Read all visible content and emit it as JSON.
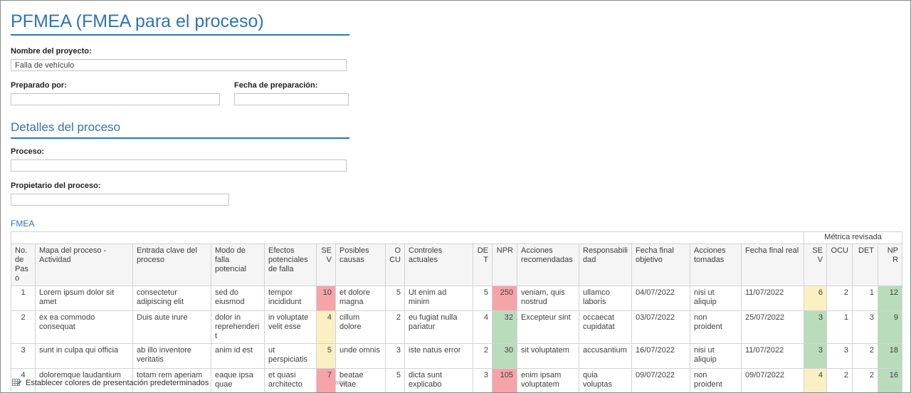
{
  "page": {
    "title": "PFMEA (FMEA para el proceso)"
  },
  "colors": {
    "accent": "#2e75b6",
    "risk_high": "#f5a4a8",
    "risk_medium": "#fbf0c3",
    "risk_low": "#b9dcba"
  },
  "form": {
    "project_name": {
      "label": "Nombre del proyecto:",
      "value": "Falla de vehículo"
    },
    "prepared_by": {
      "label": "Preparado por:",
      "value": ""
    },
    "prep_date": {
      "label": "Fecha de preparación:",
      "value": ""
    },
    "section_process": "Detalles del proceso",
    "process": {
      "label": "Proceso:",
      "value": ""
    },
    "process_owner": {
      "label": "Propietario del proceso:",
      "value": ""
    }
  },
  "fmea": {
    "section_label": "FMEA",
    "group_header": "Métrica revisada",
    "columns": [
      "No. de Paso",
      "Mapa del proceso - Actividad",
      "Entrada clave del proceso",
      "Modo de falla potencial",
      "Efectos potenciales de falla",
      "SEV",
      "Posibles causas",
      "OCU",
      "Controles actuales",
      "DET",
      "NPR",
      "Acciones recomendadas",
      "Responsabilidad",
      "Fecha final objetivo",
      "Acciones tomadas",
      "Fecha final real",
      "SEV",
      "OCU",
      "DET",
      "NPR"
    ],
    "rows": [
      {
        "cells": [
          "1",
          "Lorem ipsum dolor sit amet",
          "consectetur adipiscing elit",
          "sed do eiusmod",
          "tempor incididunt",
          "10",
          "et dolore magna",
          "5",
          "Ut enim ad minim",
          "5",
          "250",
          "veniam, quis nostrud",
          "ullamco laboris",
          "04/07/2022",
          "nisi ut aliquip",
          "11/07/2022",
          "6",
          "2",
          "1",
          "12"
        ],
        "highlights": {
          "5": "red",
          "10": "red",
          "16": "yellow",
          "19": "green"
        }
      },
      {
        "cells": [
          "2",
          "ex ea commodo consequat",
          "Duis aute irure",
          "dolor in reprehenderit",
          "in voluptate velit esse",
          "4",
          "cillum dolore",
          "2",
          "eu fugiat nulla pariatur",
          "4",
          "32",
          "Excepteur sint",
          "occaecat cupidatat",
          "03/07/2022",
          "non proident",
          "25/07/2022",
          "3",
          "1",
          "3",
          "9"
        ],
        "highlights": {
          "5": "yellow",
          "10": "green",
          "16": "green",
          "19": "green"
        }
      },
      {
        "cells": [
          "3",
          "sunt in culpa qui officia",
          "ab illo inventore veritatis",
          "anim id est",
          "ut perspiciatis",
          "5",
          "unde omnis",
          "3",
          "iste natus error",
          "2",
          "30",
          "sit voluptatem",
          "accusantium",
          "16/07/2022",
          "nisi ut aliquip",
          "11/07/2022",
          "3",
          "3",
          "2",
          "18"
        ],
        "highlights": {
          "5": "yellow",
          "10": "green",
          "16": "green",
          "19": "green"
        }
      },
      {
        "cells": [
          "4",
          "doloremque laudantium",
          "totam rem aperiam",
          "eaque ipsa quae",
          "et quasi architecto",
          "7",
          "beatae vitae",
          "5",
          "dicta sunt explicabo",
          "3",
          "105",
          "enim ipsam voluptatem",
          "quia voluptas",
          "09/07/2022",
          "non proident",
          "09/07/2022",
          "4",
          "2",
          "2",
          "16"
        ],
        "highlights": {
          "5": "red",
          "10": "red",
          "16": "yellow",
          "19": "green"
        }
      }
    ]
  },
  "footer": {
    "set_colors_label": "Establecer colores de presentación predeterminados",
    "open_label": "abrir"
  }
}
